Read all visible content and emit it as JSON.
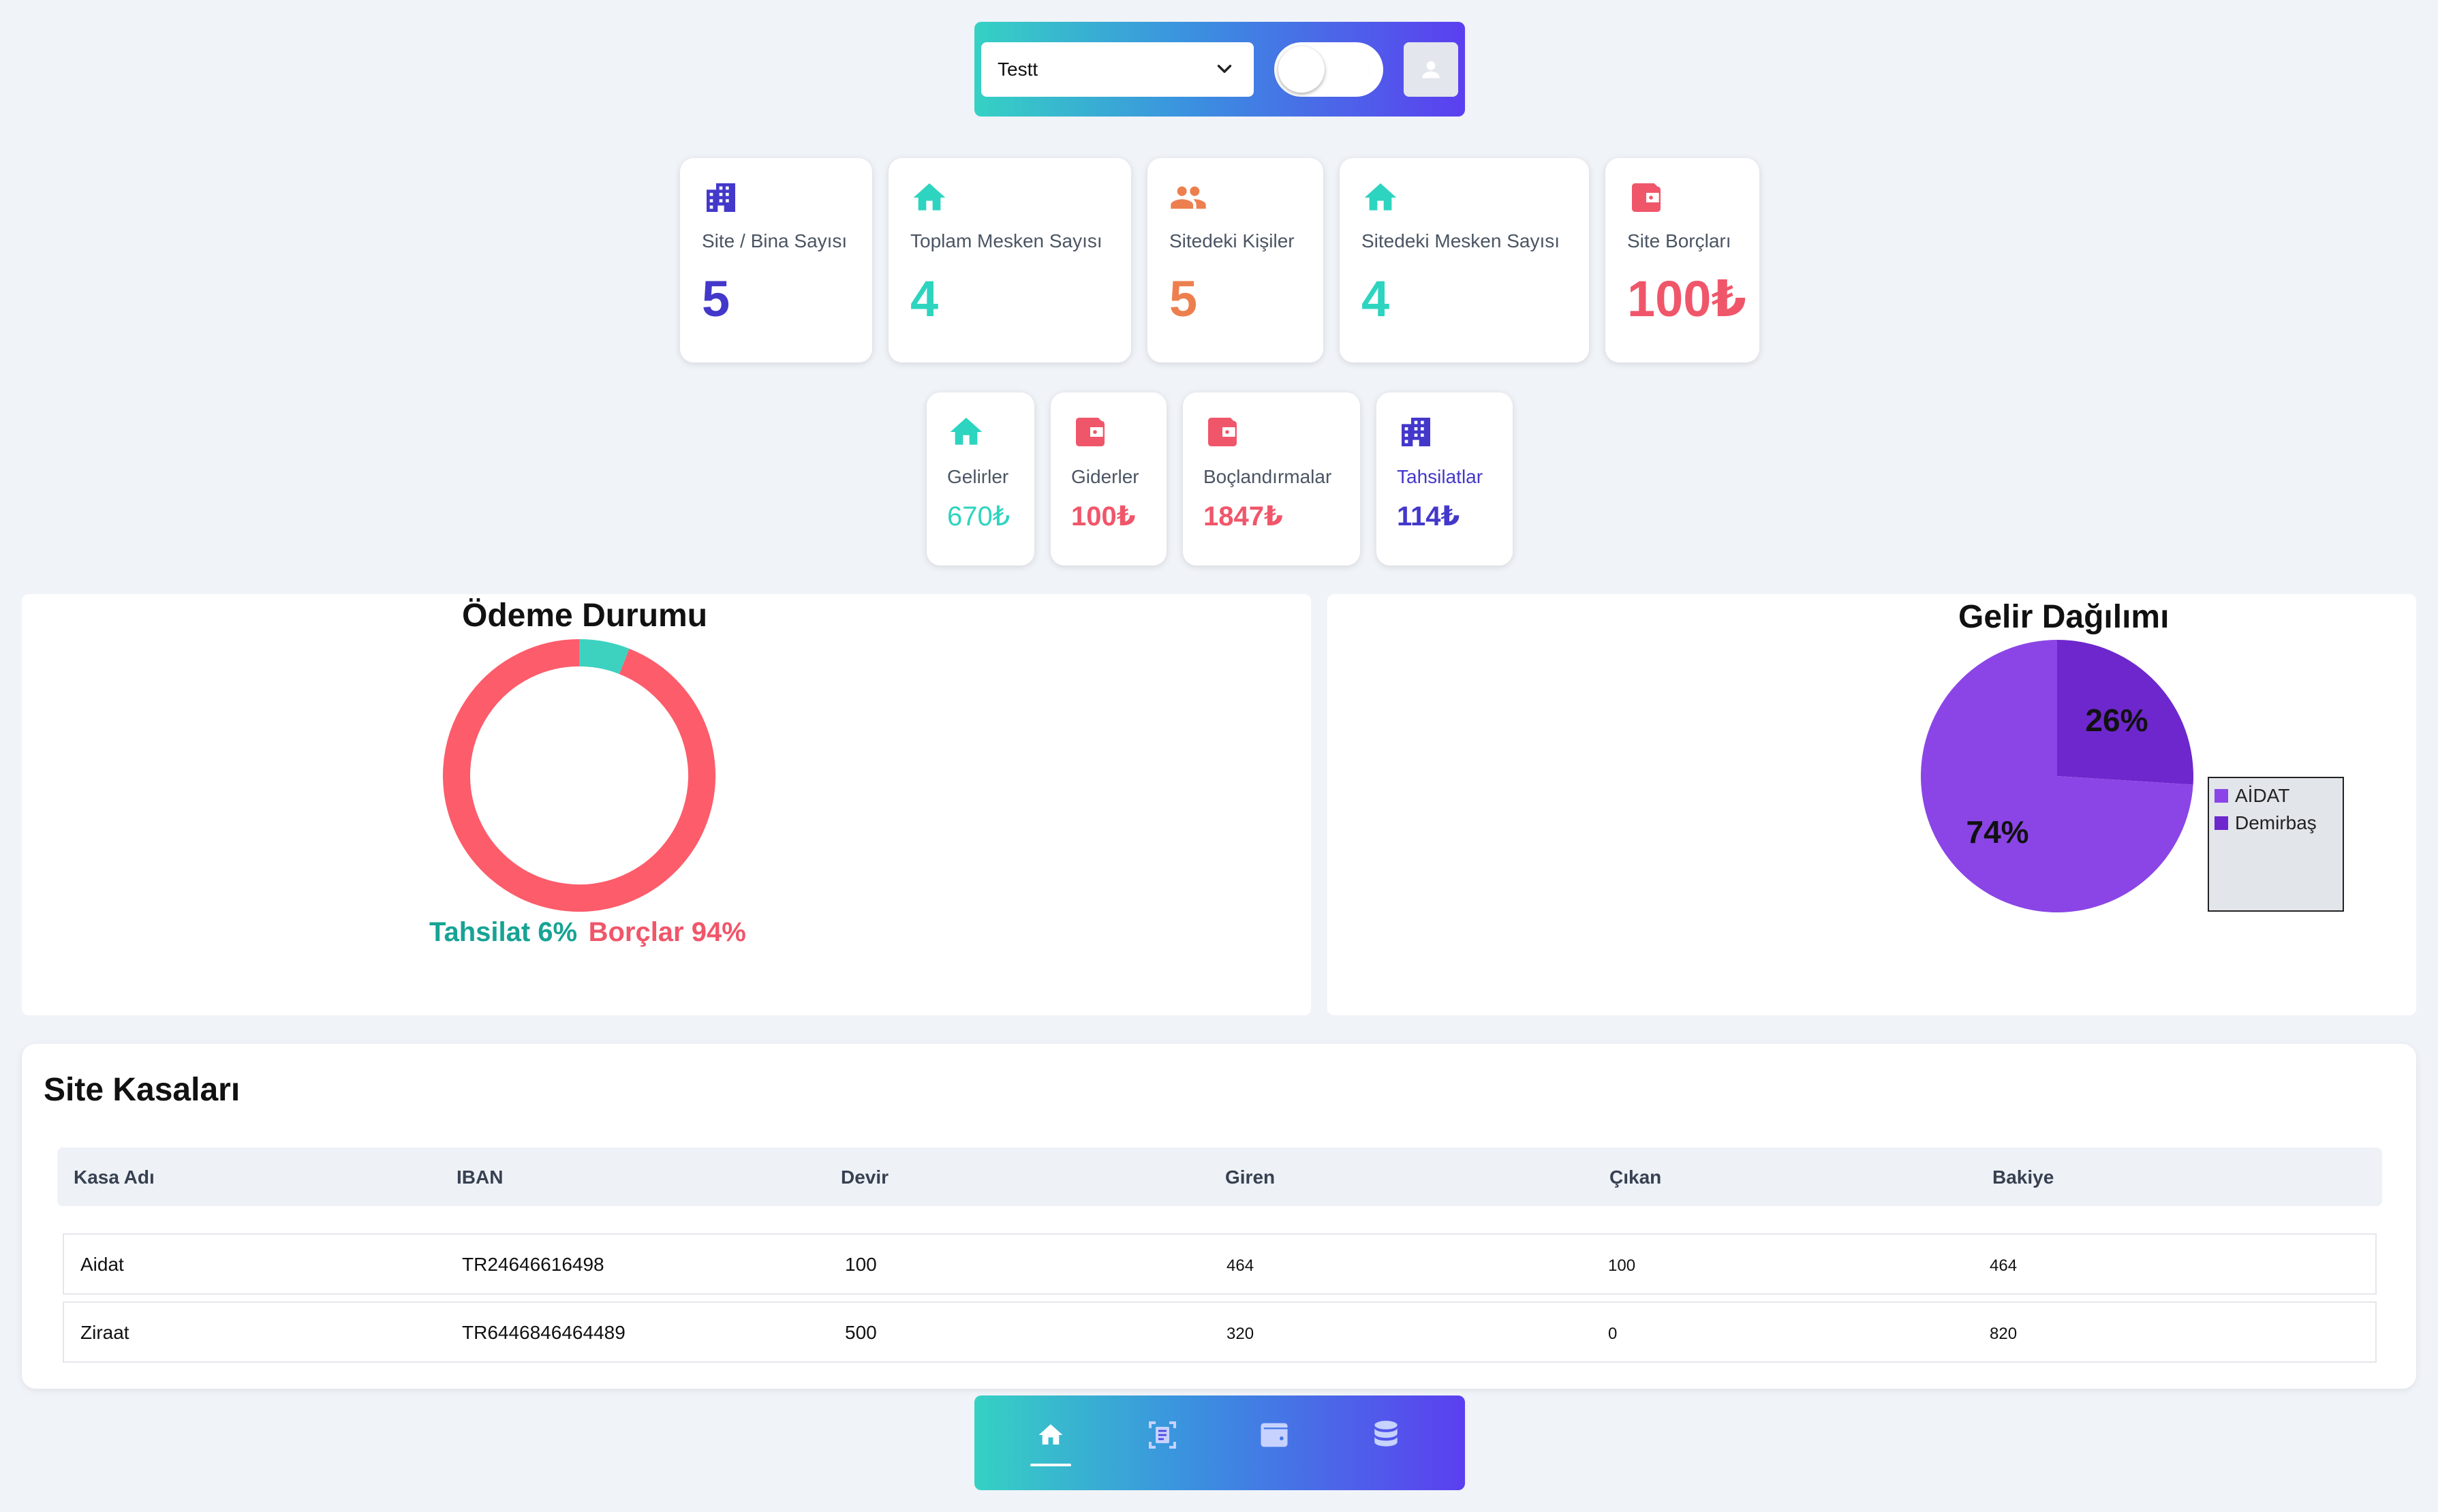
{
  "header": {
    "site_select": {
      "value": "Testt"
    },
    "theme_toggle": {
      "state": "light"
    }
  },
  "stats_row1": [
    {
      "label": "Site / Bina Sayısı",
      "value": "5",
      "icon": "building-icon",
      "color": "#4338ca"
    },
    {
      "label": "Toplam Mesken Sayısı",
      "value": "4",
      "icon": "home-icon",
      "color": "#2dd4bf"
    },
    {
      "label": "Sitedeki Kişiler",
      "value": "5",
      "icon": "people-icon",
      "color": "#ed7f4f"
    },
    {
      "label": "Sitedeki Mesken Sayısı",
      "value": "4",
      "icon": "home-icon",
      "color": "#2dd4bf"
    },
    {
      "label": "Site Borçları",
      "value": "100₺",
      "icon": "wallet-icon",
      "color": "#f0566a"
    }
  ],
  "stats_row2": [
    {
      "label": "Gelirler",
      "value": "670₺",
      "icon": "home-icon",
      "color": "#2dd4bf"
    },
    {
      "label": "Giderler",
      "value": "100₺",
      "icon": "wallet-icon",
      "color": "#f0566a"
    },
    {
      "label": "Boçlandırmalar",
      "value": "1847₺",
      "icon": "wallet-icon",
      "color": "#f0566a"
    },
    {
      "label": "Tahsilatlar",
      "value": "114₺",
      "icon": "building-icon",
      "color": "#4338ca"
    }
  ],
  "payment_panel": {
    "title": "Ödeme Durumu",
    "legend_tahsilat": "Tahsilat 6%",
    "legend_borclar": "Borçlar 94%"
  },
  "income_panel": {
    "title": "Gelir Dağılımı",
    "legend": [
      "AİDAT",
      "Demirbaş"
    ]
  },
  "chart_data": [
    {
      "type": "pie",
      "subtype": "donut",
      "title": "Ödeme Durumu",
      "categories": [
        "Tahsilat",
        "Borçlar"
      ],
      "values": [
        6,
        94
      ],
      "colors": [
        "#3dd2c0",
        "#fd5c6b"
      ]
    },
    {
      "type": "pie",
      "title": "Gelir Dağılımı",
      "categories": [
        "AİDAT",
        "Demirbaş"
      ],
      "values": [
        74,
        26
      ],
      "labels": [
        "74%",
        "26%"
      ],
      "colors": [
        "#8b45e6",
        "#6d27cc"
      ],
      "legend_position": "right"
    }
  ],
  "kasalar": {
    "title": "Site Kasaları",
    "columns": [
      "Kasa Adı",
      "IBAN",
      "Devir",
      "Giren",
      "Çıkan",
      "Bakiye"
    ],
    "rows": [
      [
        "Aidat",
        "TR24646616498",
        "100",
        "464",
        "100",
        "464"
      ],
      [
        "Ziraat",
        "TR6446846464489",
        "500",
        "320",
        "0",
        "820"
      ]
    ]
  },
  "bottom_nav": {
    "items": [
      "home-icon",
      "receipt-icon",
      "wallet-icon",
      "database-icon"
    ],
    "active": "home-icon"
  }
}
